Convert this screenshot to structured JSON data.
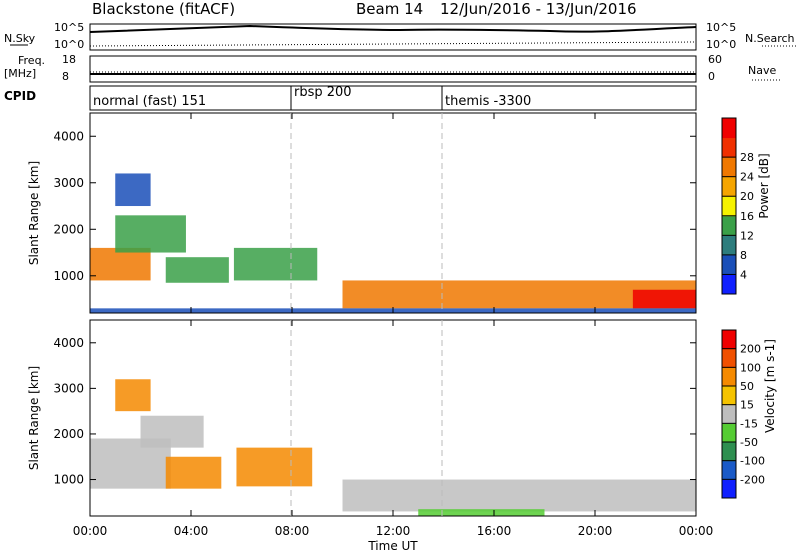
{
  "header": {
    "station": "Blackstone (fitACF)",
    "beam": "Beam 14",
    "date_range": "12/Jun/2016 - 13/Jun/2016"
  },
  "nsky_panel": {
    "left_label": "N.Sky",
    "left_ticks": [
      "10^5",
      "10^0"
    ],
    "right_ticks": [
      "10^5",
      "10^0"
    ],
    "right_label": "N.Search"
  },
  "freq_panel": {
    "left_label_1": "Freq.",
    "left_label_2": "[MHz]",
    "left_ticks": [
      "18",
      "8"
    ],
    "right_ticks": [
      "60",
      "0"
    ],
    "right_label": "Nave"
  },
  "cpid_panel": {
    "label": "CPID",
    "modes": [
      {
        "name": "normal (fast) 151",
        "start_hour": 0
      },
      {
        "name": "rbsp 200",
        "start_hour": 8
      },
      {
        "name": "themis -3300",
        "start_hour": 14
      }
    ]
  },
  "chart_data": [
    {
      "type": "heatmap",
      "quantity": "Power",
      "ylabel": "Slant Range [km]",
      "xlabel": "",
      "xlim": [
        0,
        24
      ],
      "ylim": [
        200,
        4500
      ],
      "y_ticks": [
        1000,
        2000,
        3000,
        4000
      ],
      "colorbar": {
        "label": "Power [dB]",
        "ticks": [
          "4",
          "8",
          "12",
          "16",
          "20",
          "24",
          "28"
        ],
        "colors": [
          "#1020ff",
          "#1a4fb8",
          "#2d7d7d",
          "#3aa048",
          "#f6f200",
          "#f5a500",
          "#f07800",
          "#f03000",
          "#f00000"
        ]
      },
      "regions": [
        {
          "t0": 0.0,
          "t1": 2.4,
          "r0": 900,
          "r1": 1600,
          "level": "high"
        },
        {
          "t0": 1.0,
          "t1": 3.8,
          "r0": 1500,
          "r1": 2300,
          "level": "mid"
        },
        {
          "t0": 1.0,
          "t1": 2.4,
          "r0": 2500,
          "r1": 3200,
          "level": "low"
        },
        {
          "t0": 3.0,
          "t1": 5.5,
          "r0": 850,
          "r1": 1400,
          "level": "mid"
        },
        {
          "t0": 5.7,
          "t1": 9.0,
          "r0": 900,
          "r1": 1600,
          "level": "mid"
        },
        {
          "t0": 10.0,
          "t1": 24.0,
          "r0": 300,
          "r1": 900,
          "level": "high"
        },
        {
          "t0": 21.5,
          "t1": 24.0,
          "r0": 300,
          "r1": 700,
          "level": "max"
        },
        {
          "t0": 0.0,
          "t1": 24.0,
          "r0": 200,
          "r1": 300,
          "level": "low"
        }
      ]
    },
    {
      "type": "heatmap",
      "quantity": "Velocity",
      "ylabel": "Slant Range [km]",
      "xlabel": "Time UT",
      "xlim": [
        0,
        24
      ],
      "ylim": [
        200,
        4500
      ],
      "y_ticks": [
        1000,
        2000,
        3000,
        4000
      ],
      "x_ticks": [
        "00:00",
        "04:00",
        "08:00",
        "12:00",
        "16:00",
        "20:00",
        "00:00"
      ],
      "colorbar": {
        "label": "Velocity [m s-1]",
        "ticks": [
          "200",
          "100",
          "50",
          "15",
          "-15",
          "-50",
          "-100",
          "-200"
        ],
        "colors": [
          "#1020ff",
          "#1a5ac8",
          "#2e8f50",
          "#55cc33",
          "#bebebe",
          "#f5c300",
          "#f58a00",
          "#f05000",
          "#f00000"
        ]
      },
      "regions": [
        {
          "t0": 0.0,
          "t1": 3.2,
          "r0": 800,
          "r1": 1900,
          "level": "gray"
        },
        {
          "t0": 2.0,
          "t1": 4.5,
          "r0": 1700,
          "r1": 2400,
          "level": "gray"
        },
        {
          "t0": 1.0,
          "t1": 2.4,
          "r0": 2500,
          "r1": 3200,
          "level": "orange"
        },
        {
          "t0": 3.0,
          "t1": 5.2,
          "r0": 800,
          "r1": 1500,
          "level": "orange"
        },
        {
          "t0": 5.8,
          "t1": 8.8,
          "r0": 850,
          "r1": 1700,
          "level": "orange"
        },
        {
          "t0": 10.0,
          "t1": 24.0,
          "r0": 300,
          "r1": 1000,
          "level": "gray"
        },
        {
          "t0": 13.0,
          "t1": 18.0,
          "r0": 200,
          "r1": 350,
          "level": "green"
        }
      ]
    }
  ]
}
